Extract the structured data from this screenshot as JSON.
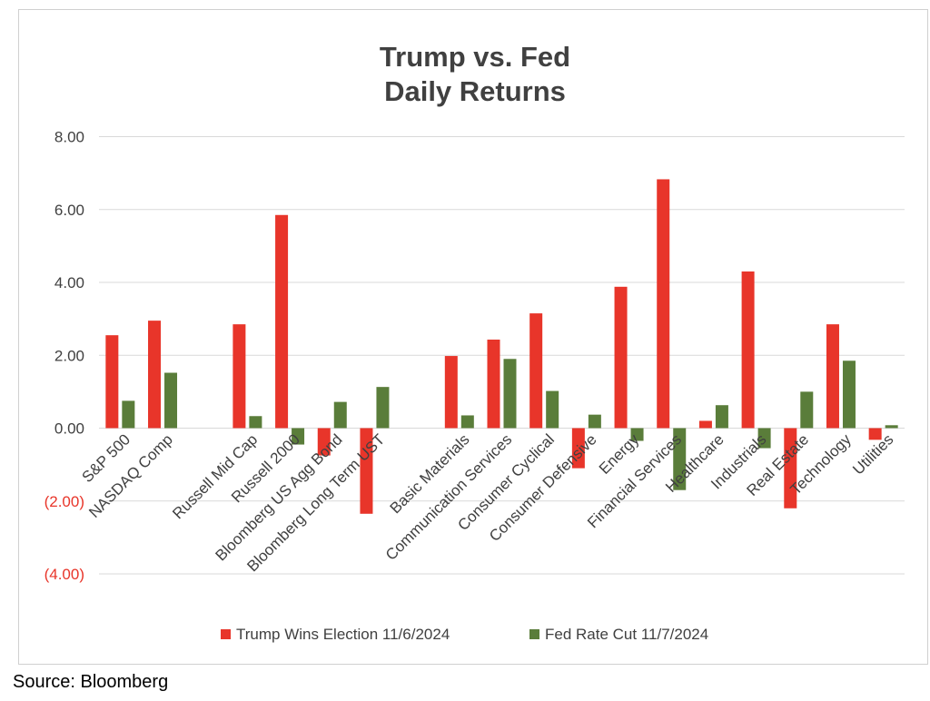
{
  "chart_data": {
    "type": "bar",
    "title": [
      "Trump vs. Fed",
      "Daily Returns"
    ],
    "categories": [
      "S&P 500",
      "NASDAQ Comp",
      "",
      "Russell Mid Cap",
      "Russell 2000",
      "Bloomberg US Agg Bond",
      "Bloomberg Long Term UST",
      "",
      "Basic Materials",
      "Communication Services",
      "Consumer Cyclical",
      "Consumer Defensive",
      "Energy",
      "Financial Services",
      "Healthcare",
      "Industrials",
      "Real Estate",
      "Technology",
      "Utilities"
    ],
    "series": [
      {
        "name": "Trump Wins Election 11/6/2024",
        "color": "#e8352a",
        "values": [
          2.55,
          2.95,
          null,
          2.85,
          5.85,
          -0.75,
          -2.35,
          null,
          1.98,
          2.43,
          3.15,
          -1.1,
          3.88,
          6.83,
          0.2,
          4.3,
          -2.2,
          2.85,
          -0.32
        ]
      },
      {
        "name": "Fed Rate Cut 11/7/2024",
        "color": "#5a7d3a",
        "values": [
          0.75,
          1.52,
          null,
          0.33,
          -0.45,
          0.72,
          1.13,
          null,
          0.35,
          1.9,
          1.02,
          0.37,
          -0.35,
          -1.7,
          0.63,
          -0.55,
          1.0,
          1.85,
          0.08
        ]
      }
    ],
    "yticks": [
      8,
      6,
      4,
      2,
      0,
      -2,
      -4
    ],
    "ytick_labels": [
      "8.00",
      "6.00",
      "4.00",
      "2.00",
      "0.00",
      "(2.00)",
      "(4.00)"
    ],
    "negative_label_color": "#e8352a",
    "ylim": [
      -4,
      8
    ],
    "grid": true,
    "legend_position": "bottom"
  },
  "source": "Source: Bloomberg"
}
